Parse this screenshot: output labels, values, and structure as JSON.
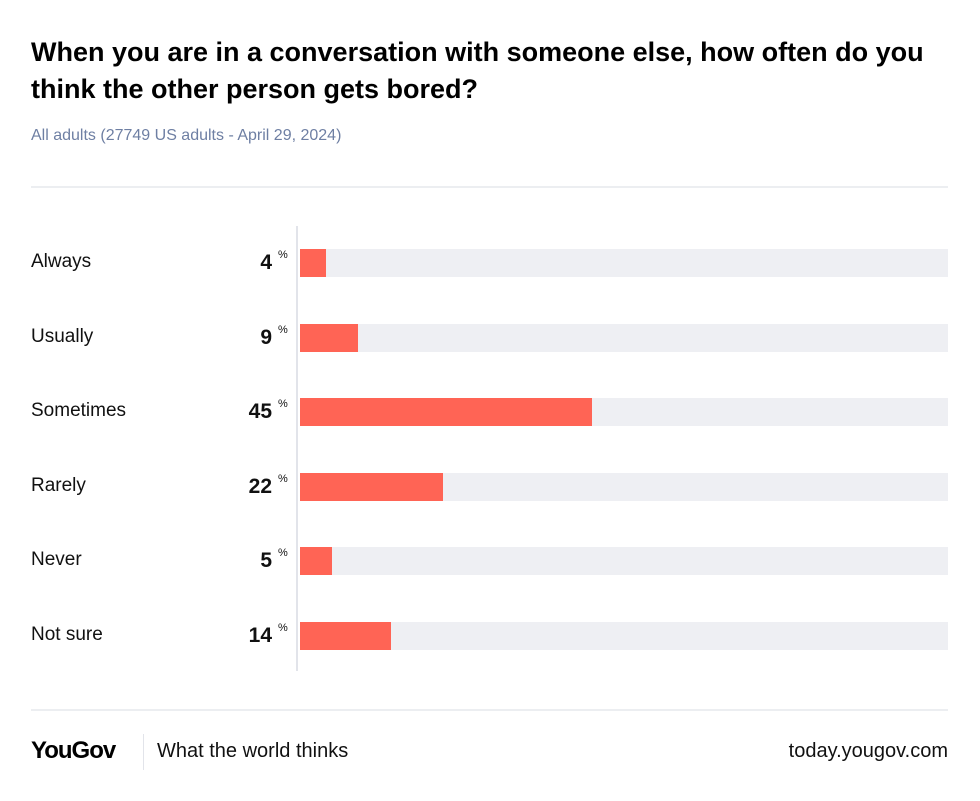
{
  "chart_data": {
    "type": "bar",
    "orientation": "horizontal",
    "title": "When you are in a conversation with someone else, how often do you think the other person gets bored?",
    "subtitle": "All adults (27749 US adults - April 29, 2024)",
    "categories": [
      "Always",
      "Usually",
      "Sometimes",
      "Rarely",
      "Never",
      "Not sure"
    ],
    "values": [
      4,
      9,
      45,
      22,
      5,
      14
    ],
    "unit": "%",
    "xlim": [
      0,
      100
    ],
    "grid": false,
    "bar_color": "#ff6455",
    "track_color": "#eeeff3"
  },
  "footer": {
    "logo": "YouGov",
    "tagline": "What the world thinks",
    "url": "today.yougov.com"
  }
}
